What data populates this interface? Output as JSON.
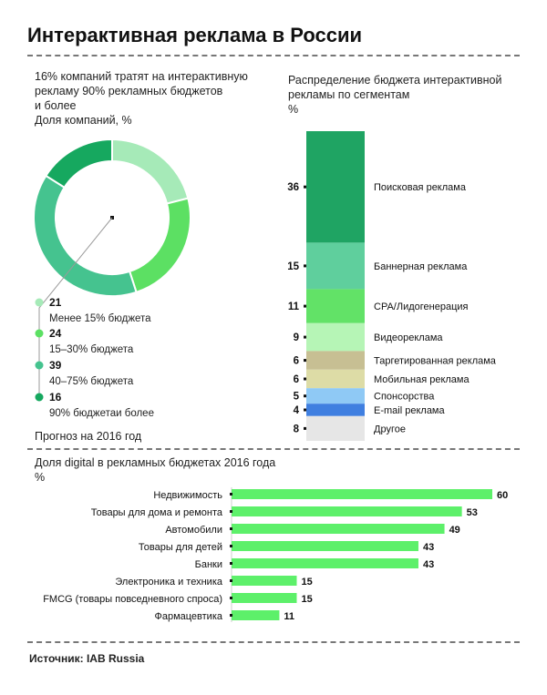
{
  "header": {
    "title": "Интерактивная реклама в России"
  },
  "donut_section": {
    "heading_lines": [
      "16% компаний тратят на интерактивную",
      "рекламу 90% рекламных бюджетов",
      "и более"
    ],
    "subheading": "Доля компаний, %",
    "forecast": "Прогноз на 2016 год"
  },
  "segments_section": {
    "heading_lines": [
      "Распределение бюджета интерактивной",
      "рекламы по сегментам"
    ],
    "unit": "%"
  },
  "bars_section": {
    "heading": "Доля digital в рекламных бюджетах 2016 года",
    "unit": "%"
  },
  "footer": {
    "source": "Источник: IAB Russia"
  },
  "chart_data": [
    {
      "type": "pie",
      "variant": "donut",
      "slices": [
        {
          "value": 21,
          "label": "Менее 15% бюджета",
          "color": "#a6eab8"
        },
        {
          "value": 24,
          "label": "15–30% бюджета",
          "color": "#5ce063"
        },
        {
          "value": 39,
          "label": "40–75% бюджета",
          "color": "#45c38f"
        },
        {
          "value": 16,
          "label": "90% бюджетаи более",
          "color": "#16a85f"
        }
      ]
    },
    {
      "type": "bar",
      "orientation": "stacked-vertical",
      "series": [
        {
          "name": "Поисковая реклама",
          "value": 36,
          "color": "#1fa463"
        },
        {
          "name": "Баннерная реклама",
          "value": 15,
          "color": "#5fcf9d"
        },
        {
          "name": "CPA/Лидогенерация",
          "value": 11,
          "color": "#62e267"
        },
        {
          "name": "Видеореклама",
          "value": 9,
          "color": "#b6f5b6"
        },
        {
          "name": "Таргетированная реклама",
          "value": 6,
          "color": "#c7bf93"
        },
        {
          "name": "Мобильная реклама",
          "value": 6,
          "color": "#dddca6"
        },
        {
          "name": "Спонсорства",
          "value": 5,
          "color": "#8fc9f5"
        },
        {
          "name": "E-mail реклама",
          "value": 4,
          "color": "#3f7fe0"
        },
        {
          "name": "Другое",
          "value": 8,
          "color": "#e6e6e6"
        }
      ]
    },
    {
      "type": "bar",
      "orientation": "horizontal",
      "categories": [
        "Недвижимость",
        "Товары для дома и ремонта",
        "Автомобили",
        "Товары для детей",
        "Банки",
        "Электроника и техника",
        "FMCG (товары повседневного спроса)",
        "Фармацевтика"
      ],
      "values": [
        60,
        53,
        49,
        43,
        43,
        15,
        15,
        11
      ],
      "color": "#5df06a"
    }
  ]
}
